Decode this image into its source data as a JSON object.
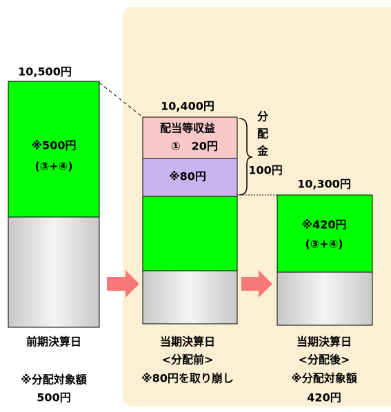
{
  "columns": [
    {
      "amount": "10,500円",
      "segments": [
        "※500円",
        "(③+④)"
      ],
      "caption": [
        "前期決算日",
        "※分配対象額",
        "500円"
      ]
    },
    {
      "amount": "10,400円",
      "segments": [
        "配当等収益",
        "①　20円",
        "※80円"
      ],
      "caption": [
        "当期決算日",
        "<分配前>",
        "※80円を取り崩し"
      ]
    },
    {
      "amount": "10,300円",
      "segments": [
        "※420円",
        "(③+④)"
      ],
      "caption": [
        "当期決算日",
        "<分配後>",
        "※分配対象額",
        "420円"
      ]
    }
  ],
  "distribution": {
    "label": [
      "分",
      "配",
      "金"
    ],
    "amount": "100円"
  }
}
